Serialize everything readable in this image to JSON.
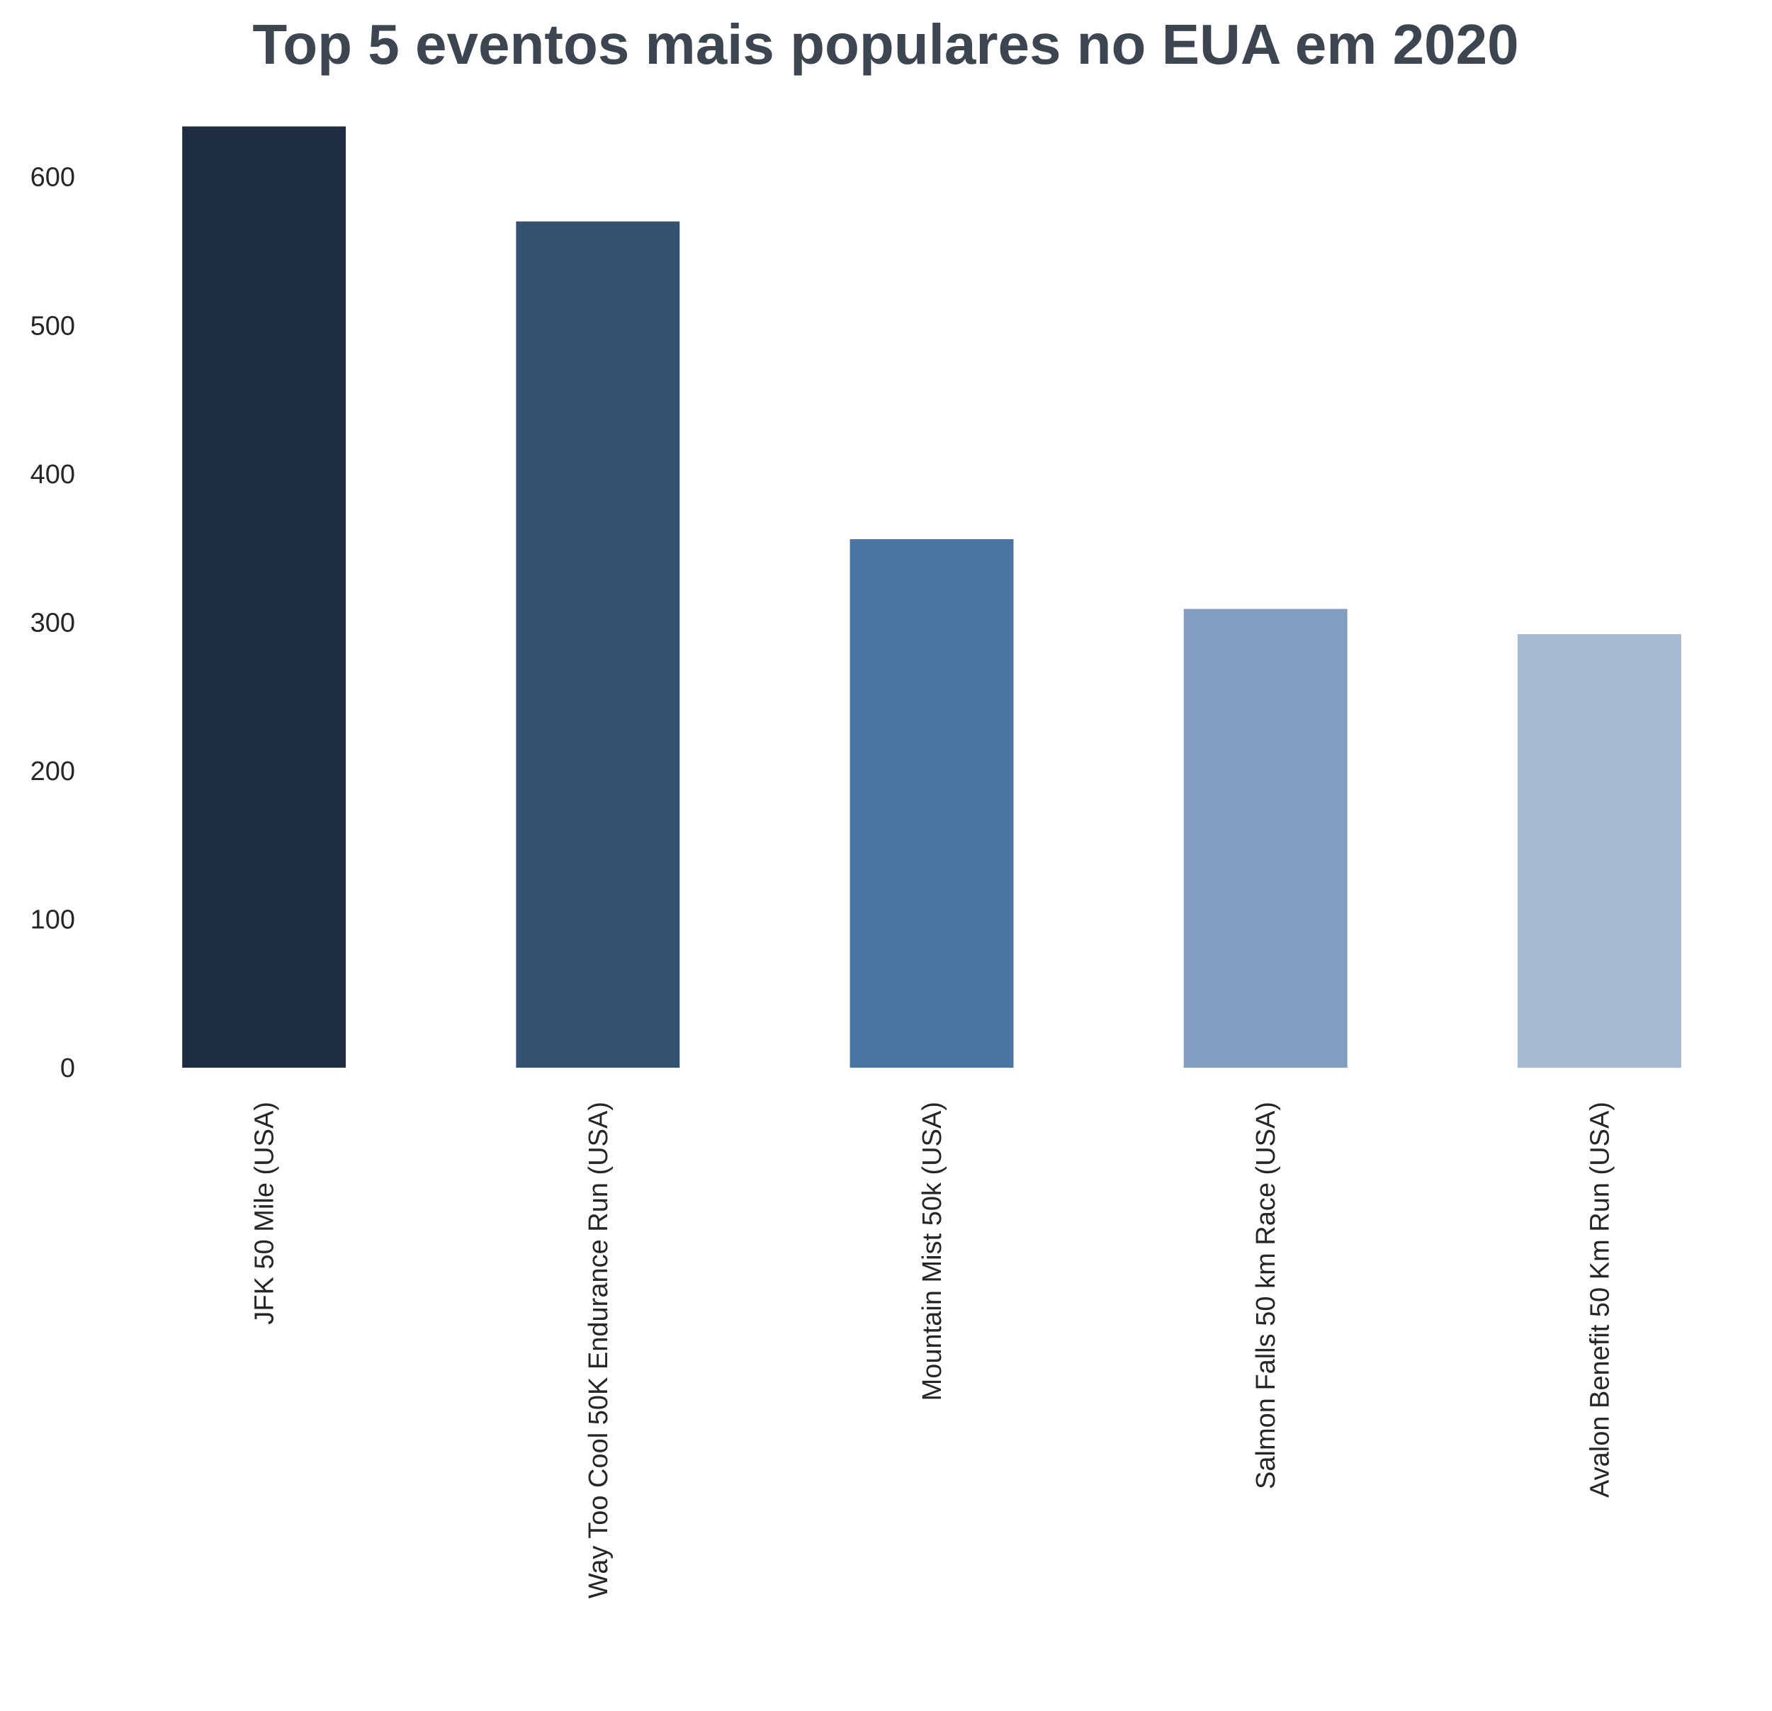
{
  "chart_data": {
    "type": "bar",
    "title": "Top 5 eventos mais populares no EUA em 2020",
    "xlabel": "",
    "ylabel": "",
    "categories": [
      "JFK 50 Mile (USA)",
      "Way Too Cool 50K Endurance Run (USA)",
      "Mountain Mist 50k (USA)",
      "Salmon Falls 50 km Race (USA)",
      "Avalon Benefit 50 Km Run (USA)"
    ],
    "values": [
      634,
      570,
      356,
      309,
      292
    ],
    "colors": [
      "#1f2d42",
      "#335272",
      "#4a74a4",
      "#819dc0",
      "#a4b9d2"
    ],
    "ylim": [
      0,
      650
    ],
    "yticks": [
      0,
      100,
      200,
      300,
      400,
      500,
      600
    ],
    "grid": false,
    "legend": "none"
  }
}
